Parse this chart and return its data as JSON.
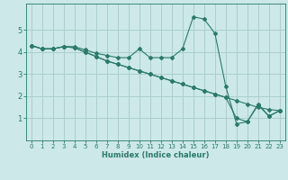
{
  "xlabel": "Humidex (Indice chaleur)",
  "bg_color": "#cce8e8",
  "grid_color": "#aacece",
  "line_color": "#2a7a6a",
  "xlim": [
    -0.5,
    23.5
  ],
  "ylim": [
    0,
    6.2
  ],
  "yticks": [
    1,
    2,
    3,
    4,
    5
  ],
  "xticks": [
    0,
    1,
    2,
    3,
    4,
    5,
    6,
    7,
    8,
    9,
    10,
    11,
    12,
    13,
    14,
    15,
    16,
    17,
    18,
    19,
    20,
    21,
    22,
    23
  ],
  "series": [
    {
      "x": [
        0,
        1,
        2,
        3,
        4,
        5,
        6,
        7,
        8,
        9,
        10,
        11,
        12,
        13,
        14,
        15,
        16,
        17,
        18,
        19,
        20,
        21,
        22,
        23
      ],
      "y": [
        4.3,
        4.15,
        4.15,
        4.25,
        4.25,
        4.1,
        3.95,
        3.85,
        3.75,
        3.75,
        4.15,
        3.75,
        3.75,
        3.75,
        4.15,
        5.6,
        5.5,
        4.85,
        2.45,
        0.75,
        0.85,
        1.6,
        1.1,
        1.35
      ]
    },
    {
      "x": [
        0,
        1,
        2,
        3,
        4,
        5,
        6,
        7,
        8,
        9,
        10,
        11,
        12,
        13,
        14,
        15,
        16,
        17,
        18,
        19,
        20,
        21,
        22,
        23
      ],
      "y": [
        4.3,
        4.15,
        4.15,
        4.25,
        4.2,
        4.0,
        3.8,
        3.6,
        3.45,
        3.3,
        3.15,
        3.0,
        2.85,
        2.7,
        2.55,
        2.4,
        2.25,
        2.1,
        1.95,
        1.8,
        1.65,
        1.5,
        1.4,
        1.35
      ]
    },
    {
      "x": [
        0,
        1,
        2,
        3,
        4,
        5,
        6,
        7,
        8,
        9,
        10,
        11,
        12,
        13,
        14,
        15,
        16,
        17,
        18,
        19,
        20,
        21,
        22,
        23
      ],
      "y": [
        4.3,
        4.15,
        4.15,
        4.25,
        4.2,
        4.0,
        3.8,
        3.6,
        3.45,
        3.3,
        3.15,
        3.0,
        2.85,
        2.7,
        2.55,
        2.4,
        2.25,
        2.1,
        1.95,
        1.0,
        0.85,
        1.65,
        1.1,
        1.35
      ]
    }
  ]
}
